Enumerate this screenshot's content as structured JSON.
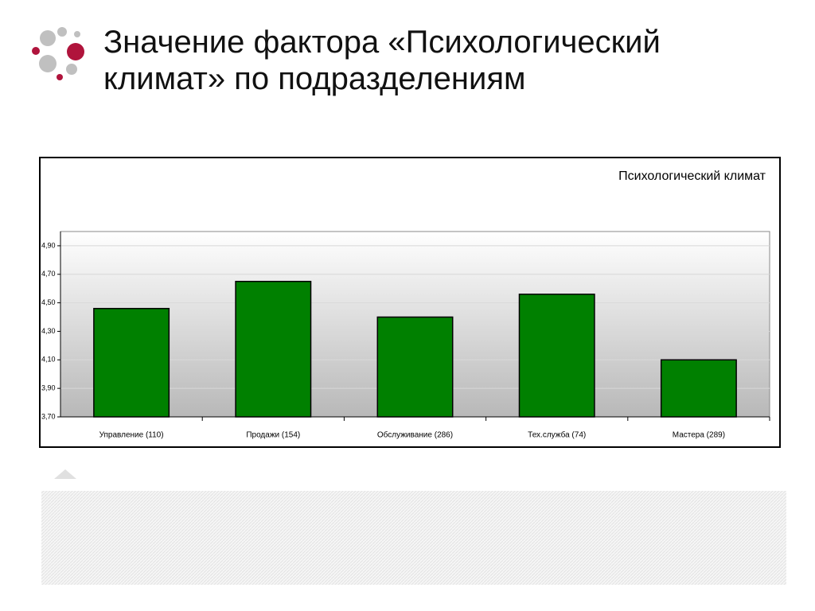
{
  "slide_title": "Значение фактора «Психологический климат» по подразделениям",
  "chart_data": {
    "type": "bar",
    "title": "Психологический климат",
    "categories": [
      "Управление (110)",
      "Продажи (154)",
      "Обслуживание (286)",
      "Тех.служба (74)",
      "Мастера (289)"
    ],
    "values": [
      4.46,
      4.65,
      4.4,
      4.56,
      4.1
    ],
    "color": "#008000",
    "ylim": [
      3.7,
      5.0
    ],
    "yticks": [
      {
        "value": 3.7,
        "label": "3,70"
      },
      {
        "value": 3.9,
        "label": "3,90"
      },
      {
        "value": 4.1,
        "label": "4,10"
      },
      {
        "value": 4.3,
        "label": "4,30"
      },
      {
        "value": 4.5,
        "label": "4,50"
      },
      {
        "value": 4.7,
        "label": "4,70"
      },
      {
        "value": 4.9,
        "label": "4,90"
      }
    ],
    "grid": true
  }
}
